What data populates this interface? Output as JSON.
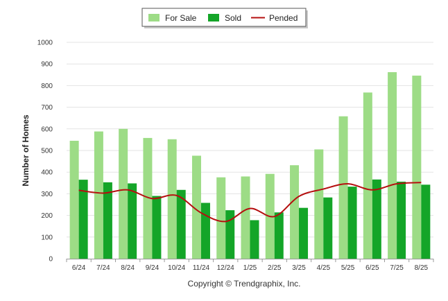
{
  "chart_data": {
    "type": "bar",
    "categories": [
      "6/24",
      "7/24",
      "8/24",
      "9/24",
      "10/24",
      "11/24",
      "12/24",
      "1/25",
      "2/25",
      "3/25",
      "4/25",
      "5/25",
      "6/25",
      "7/25",
      "8/25"
    ],
    "series": [
      {
        "name": "For Sale",
        "type": "bar",
        "color": "#9ddc86",
        "values": [
          545,
          588,
          600,
          558,
          552,
          476,
          376,
          380,
          392,
          432,
          505,
          658,
          768,
          862,
          846
        ]
      },
      {
        "name": "Sold",
        "type": "bar",
        "color": "#14a528",
        "values": [
          365,
          353,
          348,
          290,
          318,
          258,
          224,
          178,
          214,
          235,
          283,
          333,
          366,
          356,
          342
        ]
      },
      {
        "name": "Pended",
        "type": "line",
        "color": "#b50f0f",
        "values": [
          316,
          303,
          318,
          278,
          292,
          212,
          172,
          232,
          195,
          288,
          322,
          346,
          318,
          346,
          352
        ]
      }
    ],
    "title": "",
    "xlabel": "",
    "ylabel": "Number of Homes",
    "ylim": [
      0,
      1000
    ],
    "yticks": [
      0,
      100,
      200,
      300,
      400,
      500,
      600,
      700,
      800,
      900,
      1000
    ],
    "grid": true,
    "legend": "top-center"
  },
  "footer": {
    "copyright": "Copyright © Trendgraphix, Inc."
  }
}
